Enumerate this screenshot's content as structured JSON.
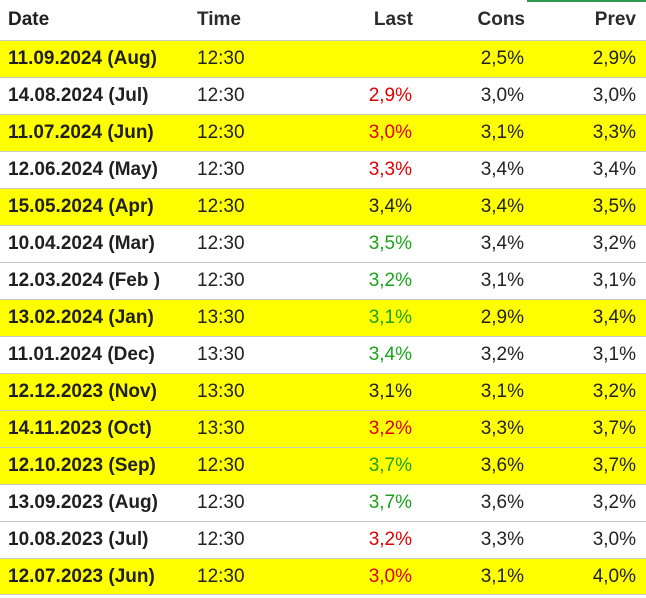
{
  "columns": {
    "date": "Date",
    "time": "Time",
    "last": "Last",
    "cons": "Cons",
    "prev": "Prev"
  },
  "colors": {
    "highlight": "#ffff00",
    "up": "#1aa31a",
    "down": "#e00000",
    "neutral": "#222222",
    "accent": "#2e9a4f"
  },
  "rows": [
    {
      "date": "11.09.2024 (Aug)",
      "time": "12:30",
      "last": "",
      "last_dir": "neutral",
      "cons": "2,5%",
      "prev": "2,9%",
      "highlight": true
    },
    {
      "date": "14.08.2024 (Jul)",
      "time": "12:30",
      "last": "2,9%",
      "last_dir": "down",
      "cons": "3,0%",
      "prev": "3,0%",
      "highlight": false
    },
    {
      "date": "11.07.2024 (Jun)",
      "time": "12:30",
      "last": "3,0%",
      "last_dir": "down",
      "cons": "3,1%",
      "prev": "3,3%",
      "highlight": true
    },
    {
      "date": "12.06.2024 (May)",
      "time": "12:30",
      "last": "3,3%",
      "last_dir": "down",
      "cons": "3,4%",
      "prev": "3,4%",
      "highlight": false
    },
    {
      "date": "15.05.2024 (Apr)",
      "time": "12:30",
      "last": "3,4%",
      "last_dir": "neutral",
      "cons": "3,4%",
      "prev": "3,5%",
      "highlight": true
    },
    {
      "date": "10.04.2024 (Mar)",
      "time": "12:30",
      "last": "3,5%",
      "last_dir": "up",
      "cons": "3,4%",
      "prev": "3,2%",
      "highlight": false
    },
    {
      "date": "12.03.2024 (Feb )",
      "time": "12:30",
      "last": "3,2%",
      "last_dir": "up",
      "cons": "3,1%",
      "prev": "3,1%",
      "highlight": false
    },
    {
      "date": "13.02.2024 (Jan)",
      "time": "13:30",
      "last": "3,1%",
      "last_dir": "up",
      "cons": "2,9%",
      "prev": "3,4%",
      "highlight": true
    },
    {
      "date": "11.01.2024 (Dec)",
      "time": "13:30",
      "last": "3,4%",
      "last_dir": "up",
      "cons": "3,2%",
      "prev": "3,1%",
      "highlight": false
    },
    {
      "date": "12.12.2023 (Nov)",
      "time": "13:30",
      "last": "3,1%",
      "last_dir": "neutral",
      "cons": "3,1%",
      "prev": "3,2%",
      "highlight": true
    },
    {
      "date": "14.11.2023 (Oct)",
      "time": "13:30",
      "last": "3,2%",
      "last_dir": "down",
      "cons": "3,3%",
      "prev": "3,7%",
      "highlight": true
    },
    {
      "date": "12.10.2023 (Sep)",
      "time": "12:30",
      "last": "3,7%",
      "last_dir": "up",
      "cons": "3,6%",
      "prev": "3,7%",
      "highlight": true
    },
    {
      "date": "13.09.2023 (Aug)",
      "time": "12:30",
      "last": "3,7%",
      "last_dir": "up",
      "cons": "3,6%",
      "prev": "3,2%",
      "highlight": false
    },
    {
      "date": "10.08.2023 (Jul)",
      "time": "12:30",
      "last": "3,2%",
      "last_dir": "down",
      "cons": "3,3%",
      "prev": "3,0%",
      "highlight": false
    },
    {
      "date": "12.07.2023 (Jun)",
      "time": "12:30",
      "last": "3,0%",
      "last_dir": "down",
      "cons": "3,1%",
      "prev": "4,0%",
      "highlight": true
    }
  ]
}
